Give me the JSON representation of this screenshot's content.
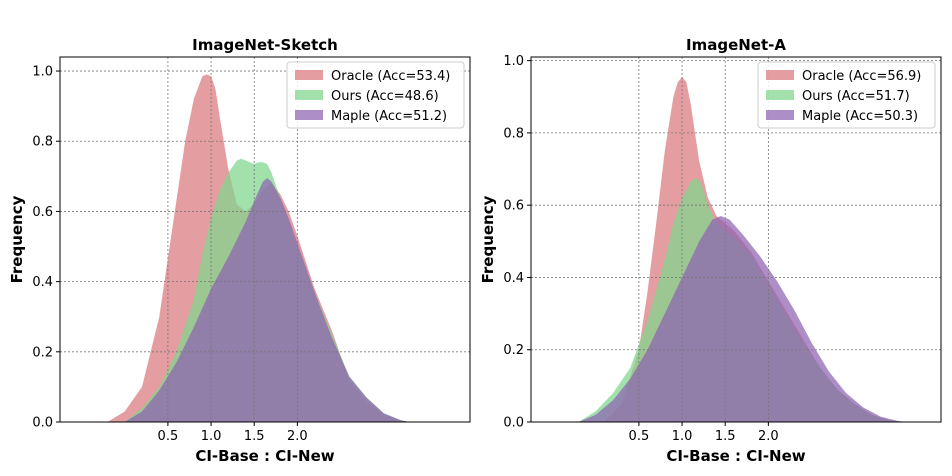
{
  "chart_data": [
    {
      "type": "area",
      "title": "ImageNet-Sketch",
      "xlabel": "CI-Base : CI-New",
      "ylabel": "Frequency",
      "xlim": [
        -0.75,
        4.0
      ],
      "ylim": [
        0.0,
        1.04
      ],
      "xticks": [
        0.5,
        1.0,
        1.5,
        2.0
      ],
      "xtick_labels": [
        "0.5",
        "1.0",
        "1.5",
        "2.0"
      ],
      "yticks": [
        0.0,
        0.2,
        0.4,
        0.6,
        0.8,
        1.0
      ],
      "ytick_labels": [
        "0.0",
        "0.2",
        "0.4",
        "0.6",
        "0.8",
        "1.0"
      ],
      "grid": true,
      "legend_position": "top-right",
      "series": [
        {
          "name": "Oracle (Acc=53.4)",
          "color": "#d9777b",
          "x": [
            -0.2,
            0.0,
            0.2,
            0.4,
            0.55,
            0.7,
            0.8,
            0.9,
            0.95,
            1.0,
            1.05,
            1.1,
            1.2,
            1.3,
            1.4,
            1.5,
            1.6,
            1.7,
            1.8,
            1.9,
            2.0,
            2.2,
            2.4,
            2.6,
            2.8,
            3.0,
            3.2,
            3.3
          ],
          "y": [
            0.0,
            0.03,
            0.1,
            0.3,
            0.55,
            0.8,
            0.92,
            0.985,
            0.99,
            0.985,
            0.95,
            0.87,
            0.72,
            0.62,
            0.6,
            0.62,
            0.66,
            0.68,
            0.65,
            0.6,
            0.53,
            0.38,
            0.26,
            0.12,
            0.06,
            0.02,
            0.005,
            0.0
          ]
        },
        {
          "name": "Ours (Acc=48.6)",
          "color": "#7fd68c",
          "x": [
            0.0,
            0.2,
            0.4,
            0.6,
            0.8,
            0.9,
            1.0,
            1.1,
            1.2,
            1.3,
            1.35,
            1.4,
            1.5,
            1.55,
            1.6,
            1.65,
            1.7,
            1.8,
            1.9,
            2.0,
            2.2,
            2.4,
            2.6,
            2.8,
            3.0,
            3.2,
            3.3
          ],
          "y": [
            0.0,
            0.04,
            0.1,
            0.2,
            0.35,
            0.48,
            0.58,
            0.66,
            0.71,
            0.745,
            0.75,
            0.745,
            0.735,
            0.74,
            0.74,
            0.735,
            0.71,
            0.64,
            0.57,
            0.5,
            0.37,
            0.25,
            0.13,
            0.07,
            0.025,
            0.005,
            0.0
          ]
        },
        {
          "name": "Maple (Acc=51.2)",
          "color": "#8e62b2",
          "x": [
            0.0,
            0.2,
            0.4,
            0.6,
            0.8,
            1.0,
            1.2,
            1.4,
            1.5,
            1.6,
            1.65,
            1.7,
            1.8,
            1.9,
            2.0,
            2.2,
            2.4,
            2.6,
            2.8,
            3.0,
            3.2,
            3.3
          ],
          "y": [
            0.0,
            0.03,
            0.09,
            0.17,
            0.27,
            0.38,
            0.47,
            0.57,
            0.63,
            0.685,
            0.695,
            0.685,
            0.64,
            0.58,
            0.51,
            0.37,
            0.24,
            0.13,
            0.07,
            0.025,
            0.005,
            0.0
          ]
        }
      ]
    },
    {
      "type": "area",
      "title": "ImageNet-A",
      "xlabel": "CI-Base : CI-New",
      "ylabel": "Frequency",
      "xlim": [
        -0.75,
        4.0
      ],
      "ylim": [
        0.0,
        1.01
      ],
      "xticks": [
        0.5,
        1.0,
        1.5,
        2.0
      ],
      "xtick_labels": [
        "0.5",
        "1.0",
        "1.5",
        "2.0"
      ],
      "yticks": [
        0.0,
        0.2,
        0.4,
        0.6,
        0.8,
        1.0
      ],
      "ytick_labels": [
        "0.0",
        "0.2",
        "0.4",
        "0.6",
        "0.8",
        "1.0"
      ],
      "grid": true,
      "legend_position": "top-right",
      "series": [
        {
          "name": "Oracle (Acc=56.9)",
          "color": "#d9777b",
          "x": [
            0.1,
            0.3,
            0.5,
            0.6,
            0.7,
            0.8,
            0.9,
            0.95,
            1.0,
            1.05,
            1.1,
            1.2,
            1.3,
            1.4,
            1.5,
            1.6,
            1.8,
            2.0,
            2.2,
            2.4,
            2.6,
            2.8,
            3.0,
            3.2,
            3.4,
            3.55
          ],
          "y": [
            0.0,
            0.05,
            0.2,
            0.36,
            0.55,
            0.75,
            0.9,
            0.94,
            0.955,
            0.94,
            0.88,
            0.72,
            0.62,
            0.57,
            0.55,
            0.53,
            0.47,
            0.39,
            0.31,
            0.23,
            0.15,
            0.09,
            0.05,
            0.02,
            0.005,
            0.0
          ]
        },
        {
          "name": "Ours (Acc=51.7)",
          "color": "#7fd68c",
          "x": [
            -0.2,
            0.0,
            0.2,
            0.4,
            0.6,
            0.8,
            0.9,
            1.0,
            1.1,
            1.15,
            1.2,
            1.25,
            1.3,
            1.4,
            1.5,
            1.6,
            1.8,
            2.0,
            2.2,
            2.4,
            2.6,
            2.8,
            3.0,
            3.2,
            3.4,
            3.55
          ],
          "y": [
            0.0,
            0.03,
            0.08,
            0.15,
            0.28,
            0.45,
            0.55,
            0.62,
            0.665,
            0.675,
            0.67,
            0.64,
            0.6,
            0.55,
            0.53,
            0.51,
            0.46,
            0.38,
            0.3,
            0.22,
            0.15,
            0.09,
            0.05,
            0.02,
            0.005,
            0.0
          ]
        },
        {
          "name": "Maple (Acc=50.3)",
          "color": "#8e62b2",
          "x": [
            -0.2,
            0.0,
            0.2,
            0.4,
            0.6,
            0.8,
            1.0,
            1.2,
            1.35,
            1.45,
            1.55,
            1.7,
            1.9,
            2.1,
            2.3,
            2.5,
            2.7,
            2.9,
            3.1,
            3.3,
            3.5,
            3.6
          ],
          "y": [
            0.0,
            0.02,
            0.06,
            0.12,
            0.2,
            0.3,
            0.4,
            0.5,
            0.56,
            0.57,
            0.56,
            0.52,
            0.46,
            0.39,
            0.31,
            0.22,
            0.14,
            0.08,
            0.04,
            0.015,
            0.003,
            0.0
          ]
        }
      ]
    }
  ]
}
